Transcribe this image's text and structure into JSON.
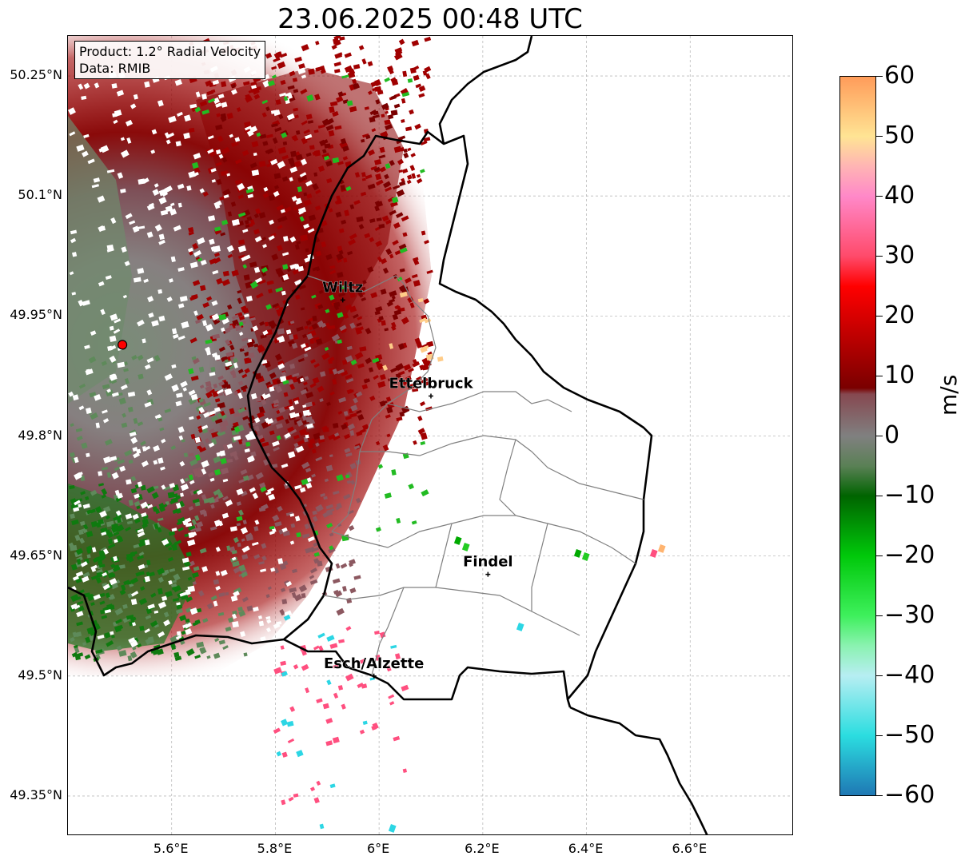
{
  "title": "23.06.2025 00:48 UTC",
  "info": {
    "product": "Product: 1.2° Radial Velocity",
    "source": "Data: RMIB"
  },
  "lat_labels": [
    "50.25°N",
    "50.1°N",
    "49.95°N",
    "49.8°N",
    "49.65°N",
    "49.5°N",
    "49.35°N"
  ],
  "lon_labels": [
    "5.6°E",
    "5.8°E",
    "6°E",
    "6.2°E",
    "6.4°E",
    "6.6°E"
  ],
  "extent": {
    "lon_min": 5.4,
    "lon_max": 6.8,
    "lat_min": 49.3,
    "lat_max": 50.3
  },
  "radar_site": {
    "lon": 5.505,
    "lat": 49.914
  },
  "cities": [
    {
      "name": "Wiltz",
      "lon": 5.93,
      "lat": 49.97
    },
    {
      "name": "Ettelbruck",
      "lon": 6.1,
      "lat": 49.85
    },
    {
      "name": "Findel",
      "lon": 6.21,
      "lat": 49.627
    },
    {
      "name": "Esch/Alzette",
      "lon": 5.99,
      "lat": 49.5
    }
  ],
  "colorbar": {
    "unit": "m/s",
    "min": -60,
    "max": 60,
    "ticks": [
      "60",
      "50",
      "40",
      "30",
      "20",
      "10",
      "0",
      "−10",
      "−20",
      "−30",
      "−40",
      "−50",
      "−60"
    ],
    "stops": [
      {
        "v": -60,
        "c": "#1f78b4"
      },
      {
        "v": -50,
        "c": "#2bdde0"
      },
      {
        "v": -40,
        "c": "#b7eef2"
      },
      {
        "v": -35,
        "c": "#8af2b0"
      },
      {
        "v": -30,
        "c": "#3ef05c"
      },
      {
        "v": -20,
        "c": "#00c80a"
      },
      {
        "v": -10,
        "c": "#006400"
      },
      {
        "v": -5,
        "c": "#5a8055"
      },
      {
        "v": 0,
        "c": "#808080"
      },
      {
        "v": 7,
        "c": "#864850"
      },
      {
        "v": 8,
        "c": "#7a0000"
      },
      {
        "v": 25,
        "c": "#ff0000"
      },
      {
        "v": 30,
        "c": "#ff4a6a"
      },
      {
        "v": 40,
        "c": "#ff88c8"
      },
      {
        "v": 45,
        "c": "#ffb4b4"
      },
      {
        "v": 50,
        "c": "#ffe494"
      },
      {
        "v": 60,
        "c": "#ff9c5a"
      }
    ]
  },
  "colors": {
    "receding": "#8b0000",
    "approaching": "#2e7d32",
    "radar_marker": "#ff0000",
    "border": "#000000",
    "canton": "#808080"
  }
}
